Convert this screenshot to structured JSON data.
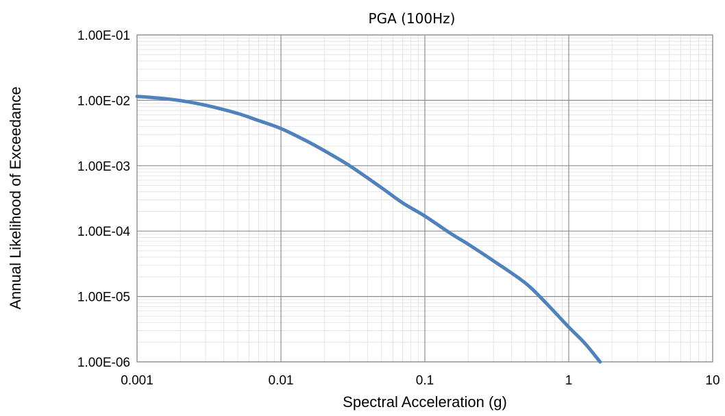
{
  "chart_data": {
    "type": "line",
    "title": "PGA (100Hz)",
    "xlabel": "Spectral Acceleration (g)",
    "ylabel": "Annual Likelihood of Exceedance",
    "xscale": "log",
    "yscale": "log",
    "xlim": [
      0.001,
      10
    ],
    "ylim": [
      1e-06,
      0.1
    ],
    "x_tick_labels": [
      "0.001",
      "0.01",
      "0.1",
      "1",
      "10"
    ],
    "y_tick_labels": [
      "1.00E-01",
      "1.00E-02",
      "1.00E-03",
      "1.00E-04",
      "1.00E-05",
      "1.00E-06"
    ],
    "grid": "major and minor",
    "legend": "none",
    "colors": {
      "series": "#4f81bd",
      "major_grid": "#8c8c8c",
      "minor_grid": "#e4e4e4"
    },
    "series": [
      {
        "x": [
          0.001,
          0.0015,
          0.002,
          0.003,
          0.005,
          0.007,
          0.01,
          0.015,
          0.02,
          0.03,
          0.05,
          0.07,
          0.1,
          0.15,
          0.2,
          0.3,
          0.5,
          0.7,
          1.0,
          1.3,
          1.65
        ],
        "y": [
          0.0115,
          0.0107,
          0.0099,
          0.0084,
          0.0063,
          0.0049,
          0.0037,
          0.0024,
          0.0017,
          0.001,
          0.00046,
          0.00027,
          0.00017,
          9.3e-05,
          6.3e-05,
          3.5e-05,
          1.6e-05,
          7.8e-06,
          3.4e-06,
          1.9e-06,
          1e-06
        ]
      }
    ]
  }
}
